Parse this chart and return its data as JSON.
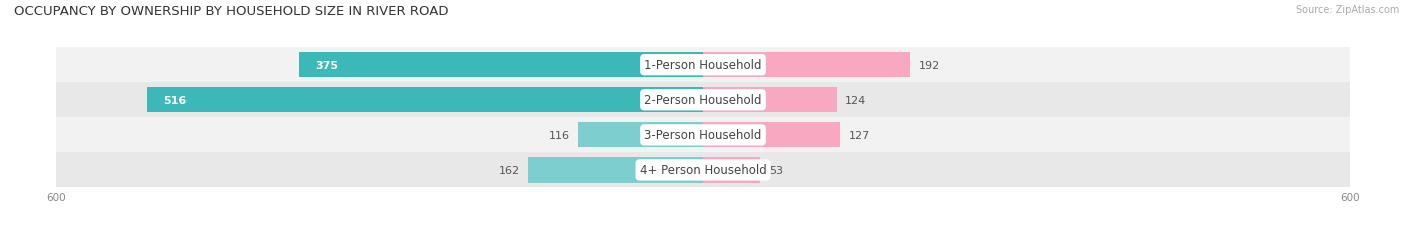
{
  "title": "OCCUPANCY BY OWNERSHIP BY HOUSEHOLD SIZE IN RIVER ROAD",
  "source": "Source: ZipAtlas.com",
  "categories": [
    "1-Person Household",
    "2-Person Household",
    "3-Person Household",
    "4+ Person Household"
  ],
  "owner_values": [
    375,
    516,
    116,
    162
  ],
  "renter_values": [
    192,
    124,
    127,
    53
  ],
  "owner_color_large": "#3DB8B8",
  "owner_color_small": "#7DCFCF",
  "renter_color_large": "#F06090",
  "renter_color_small": "#F8A8C0",
  "row_bg_colors": [
    "#F2F2F2",
    "#E8E8E8",
    "#F2F2F2",
    "#E8E8E8"
  ],
  "x_max": 600,
  "title_fontsize": 9.5,
  "bar_label_fontsize": 8,
  "category_fontsize": 8.5,
  "legend_fontsize": 8,
  "source_fontsize": 7,
  "axis_tick_fontsize": 7.5,
  "bar_height": 0.72,
  "owner_threshold": 200
}
